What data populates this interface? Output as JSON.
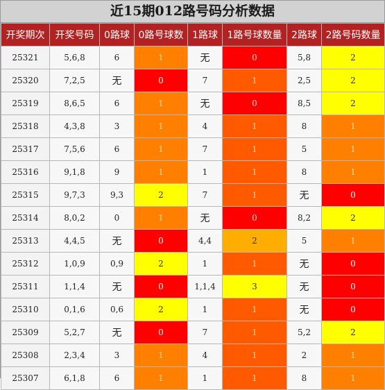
{
  "title": "近15期012路号码分析数据",
  "headers": [
    "开奖期次",
    "开奖号码",
    "0路球",
    "0路号球数",
    "1路球",
    "1路号球数量",
    "2路球",
    "2路号码数量"
  ],
  "colors": {
    "header_bg": "#b22222",
    "red": "#ff0000",
    "orange": "#ff8000",
    "yellow": "#ffff00"
  },
  "rows": [
    {
      "issue": "25321",
      "numbers": "5,6,8",
      "r0": "6",
      "c0": "1",
      "r1": "无",
      "c1": "0",
      "r2": "5,8",
      "c2": "2"
    },
    {
      "issue": "25320",
      "numbers": "7,2,5",
      "r0": "无",
      "c0": "0",
      "r1": "7",
      "c1": "1",
      "r2": "2,5",
      "c2": "2"
    },
    {
      "issue": "25319",
      "numbers": "8,6,5",
      "r0": "6",
      "c0": "1",
      "r1": "无",
      "c1": "0",
      "r2": "8,5",
      "c2": "2"
    },
    {
      "issue": "25318",
      "numbers": "4,3,8",
      "r0": "3",
      "c0": "1",
      "r1": "4",
      "c1": "1",
      "r2": "8",
      "c2": "1"
    },
    {
      "issue": "25317",
      "numbers": "7,5,6",
      "r0": "6",
      "c0": "1",
      "r1": "7",
      "c1": "1",
      "r2": "5",
      "c2": "1"
    },
    {
      "issue": "25316",
      "numbers": "9,1,8",
      "r0": "9",
      "c0": "1",
      "r1": "1",
      "c1": "1",
      "r2": "8",
      "c2": "1"
    },
    {
      "issue": "25315",
      "numbers": "9,7,3",
      "r0": "9,3",
      "c0": "2",
      "r1": "7",
      "c1": "1",
      "r2": "无",
      "c2": "0"
    },
    {
      "issue": "25314",
      "numbers": "8,0,2",
      "r0": "0",
      "c0": "1",
      "r1": "无",
      "c1": "0",
      "r2": "8,2",
      "c2": "2"
    },
    {
      "issue": "25313",
      "numbers": "4,4,5",
      "r0": "无",
      "c0": "0",
      "r1": "4,4",
      "c1": "2",
      "r2": "5",
      "c2": "1"
    },
    {
      "issue": "25312",
      "numbers": "1,0,9",
      "r0": "0,9",
      "c0": "2",
      "r1": "1",
      "c1": "1",
      "r2": "无",
      "c2": "0"
    },
    {
      "issue": "25311",
      "numbers": "1,1,4",
      "r0": "无",
      "c0": "0",
      "r1": "1,1,4",
      "c1": "3",
      "r2": "无",
      "c2": "0"
    },
    {
      "issue": "25310",
      "numbers": "0,1,6",
      "r0": "0,6",
      "c0": "2",
      "r1": "1",
      "c1": "1",
      "r2": "无",
      "c2": "0"
    },
    {
      "issue": "25309",
      "numbers": "5,2,7",
      "r0": "无",
      "c0": "0",
      "r1": "7",
      "c1": "1",
      "r2": "5,2",
      "c2": "2"
    },
    {
      "issue": "25308",
      "numbers": "2,3,4",
      "r0": "3",
      "c0": "1",
      "r1": "4",
      "c1": "1",
      "r2": "2",
      "c2": "1"
    },
    {
      "issue": "25307",
      "numbers": "6,1,8",
      "r0": "6",
      "c0": "1",
      "r1": "1",
      "c1": "1",
      "r2": "8",
      "c2": "1"
    }
  ]
}
